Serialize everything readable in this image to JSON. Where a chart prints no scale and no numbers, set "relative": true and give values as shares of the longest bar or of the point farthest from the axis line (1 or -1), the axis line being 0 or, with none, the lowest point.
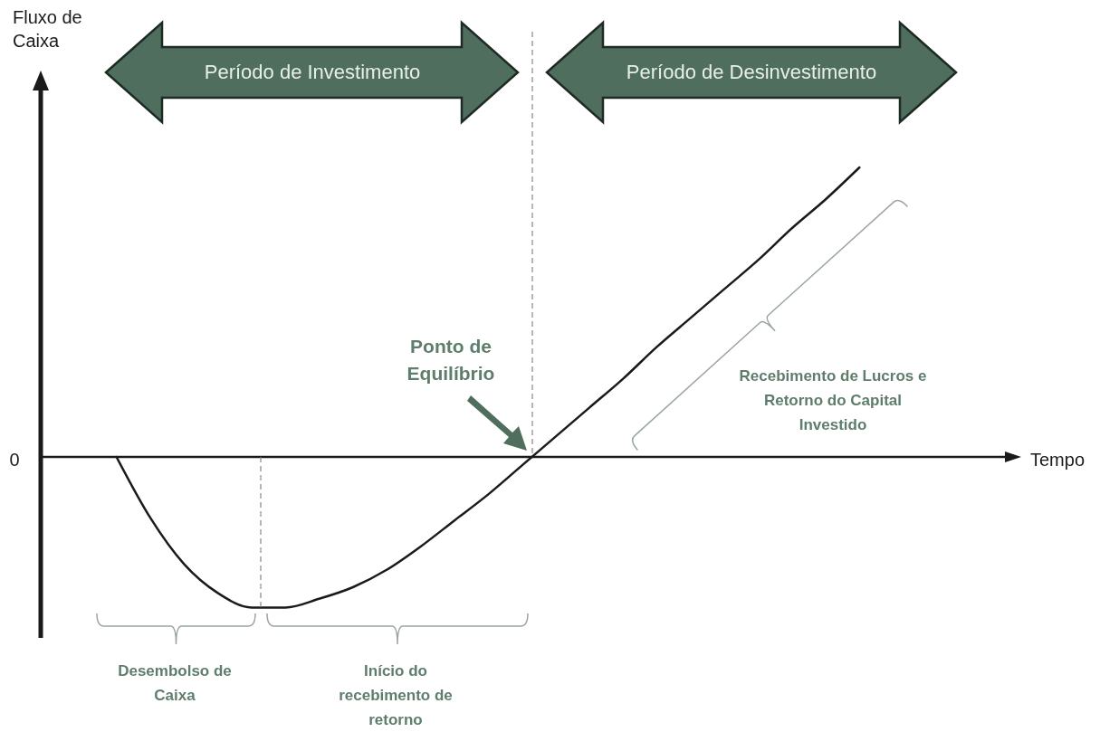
{
  "chart_data": {
    "type": "line",
    "relative": true,
    "categories": [
      null,
      null,
      null,
      null,
      null,
      null,
      null,
      null,
      null,
      null,
      null,
      null,
      null,
      null,
      null,
      null,
      null,
      null,
      null,
      null,
      null,
      null,
      null
    ],
    "series": [
      {
        "color": "#1a1a1a",
        "values": [
          0,
          -0.21,
          -0.37,
          -0.47,
          -0.52,
          -0.52,
          -0.49,
          -0.45,
          -0.39,
          -0.31,
          -0.22,
          -0.13,
          -0.03,
          0.07,
          0.17,
          0.27,
          0.38,
          0.48,
          0.58,
          0.68,
          0.79,
          0.89,
          1
        ]
      }
    ],
    "annotations": [
      "Período de Investimento",
      "Período de Desinvestimento",
      "Ponto de Equilíbrio",
      "Recebimento de Lucros e Retorno do Capital Investido",
      "Desembolso de Caixa",
      "Início do recebimento de retorno",
      "0",
      "Tempo",
      "Fluxo de Caixa"
    ]
  }
}
